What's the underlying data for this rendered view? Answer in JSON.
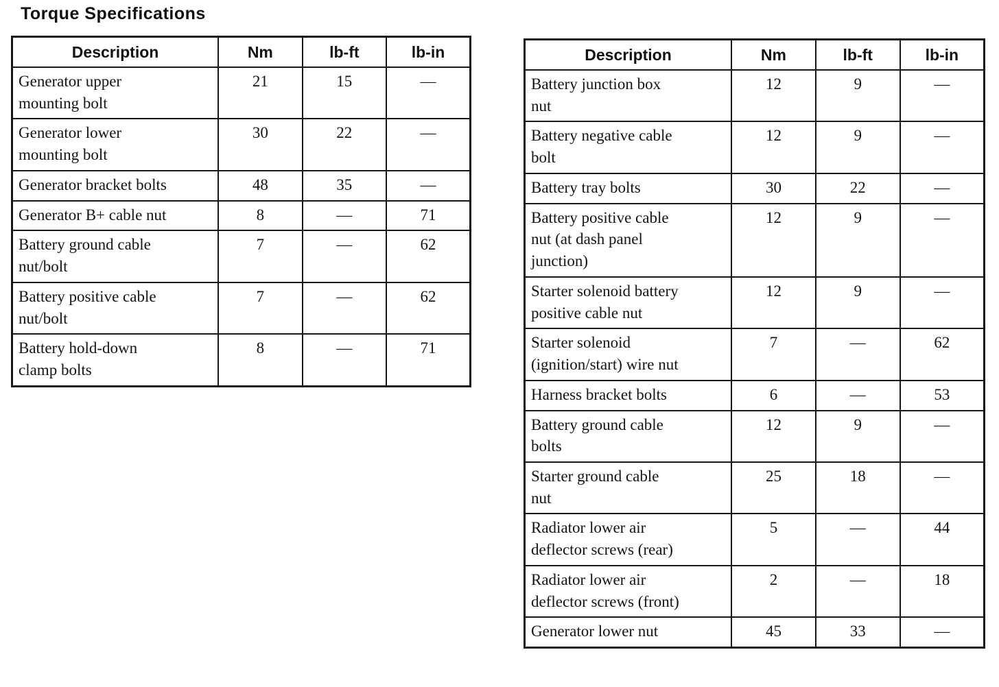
{
  "page_title": "Torque Specifications",
  "colors": {
    "ink": "#141414",
    "paper": "#ffffff"
  },
  "tables": [
    {
      "id": "generator-battery-torque-table",
      "headers": [
        "Description",
        "Nm",
        "lb-ft",
        "lb-in"
      ],
      "rows": [
        [
          "Generator upper\nmounting bolt",
          "21",
          "15",
          "—"
        ],
        [
          "Generator lower\nmounting bolt",
          "30",
          "22",
          "—"
        ],
        [
          "Generator bracket bolts",
          "48",
          "35",
          "—"
        ],
        [
          "Generator B+ cable nut",
          "8",
          "—",
          "71"
        ],
        [
          "Battery ground cable\nnut/bolt",
          "7",
          "—",
          "62"
        ],
        [
          "Battery positive cable\nnut/bolt",
          "7",
          "—",
          "62"
        ],
        [
          "Battery hold-down\nclamp bolts",
          "8",
          "—",
          "71"
        ]
      ]
    },
    {
      "id": "starter-radiator-torque-table",
      "headers": [
        "Description",
        "Nm",
        "lb-ft",
        "lb-in"
      ],
      "rows": [
        [
          "Battery junction box\nnut",
          "12",
          "9",
          "—"
        ],
        [
          "Battery negative cable\nbolt",
          "12",
          "9",
          "—"
        ],
        [
          "Battery tray bolts",
          "30",
          "22",
          "—"
        ],
        [
          "Battery positive cable\nnut (at dash panel\njunction)",
          "12",
          "9",
          "—"
        ],
        [
          "Starter solenoid battery\npositive cable nut",
          "12",
          "9",
          "—"
        ],
        [
          "Starter solenoid\n(ignition/start) wire nut",
          "7",
          "—",
          "62"
        ],
        [
          "Harness bracket bolts",
          "6",
          "—",
          "53"
        ],
        [
          "Battery ground cable\nbolts",
          "12",
          "9",
          "—"
        ],
        [
          "Starter ground cable\nnut",
          "25",
          "18",
          "—"
        ],
        [
          "Radiator lower air\ndeflector screws (rear)",
          "5",
          "—",
          "44"
        ],
        [
          "Radiator lower air\ndeflector screws (front)",
          "2",
          "—",
          "18"
        ],
        [
          "Generator lower nut",
          "45",
          "33",
          "—"
        ]
      ]
    }
  ]
}
